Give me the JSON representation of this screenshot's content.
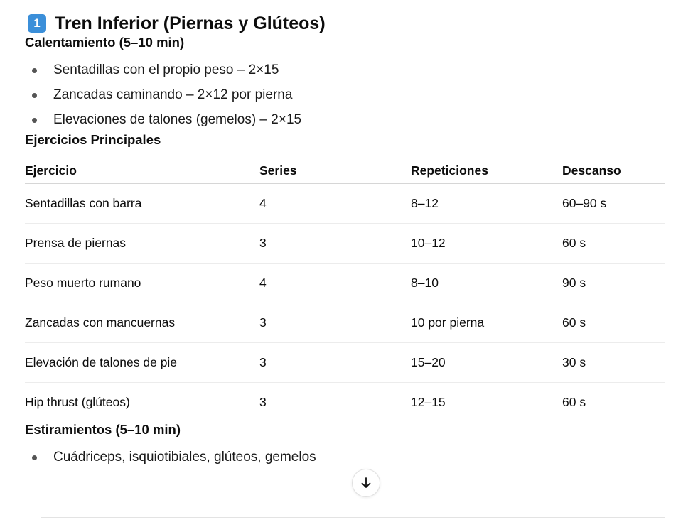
{
  "title": {
    "badge": "1",
    "text": "Tren Inferior (Piernas y Glúteos)",
    "badge_color": "#3b8fd9"
  },
  "warmup": {
    "heading": "Calentamiento (5–10 min)",
    "items": [
      "Sentadillas con el propio peso – 2×15",
      "Zancadas caminando – 2×12 por pierna",
      "Elevaciones de talones (gemelos) – 2×15"
    ]
  },
  "main": {
    "heading": "Ejercicios Principales",
    "columns": [
      "Ejercicio",
      "Series",
      "Repeticiones",
      "Descanso"
    ],
    "rows": [
      [
        "Sentadillas con barra",
        "4",
        "8–12",
        "60–90 s"
      ],
      [
        "Prensa de piernas",
        "3",
        "10–12",
        "60 s"
      ],
      [
        "Peso muerto rumano",
        "4",
        "8–10",
        "90 s"
      ],
      [
        "Zancadas con mancuernas",
        "3",
        "10 por pierna",
        "60 s"
      ],
      [
        "Elevación de talones de pie",
        "3",
        "15–20",
        "30 s"
      ],
      [
        "Hip thrust (glúteos)",
        "3",
        "12–15",
        "60 s"
      ]
    ]
  },
  "stretch": {
    "heading": "Estiramientos (5–10 min)",
    "items": [
      "Cuádriceps, isquiotibiales, glúteos, gemelos"
    ]
  },
  "scroll_button": {
    "icon": "arrow-down-icon"
  }
}
